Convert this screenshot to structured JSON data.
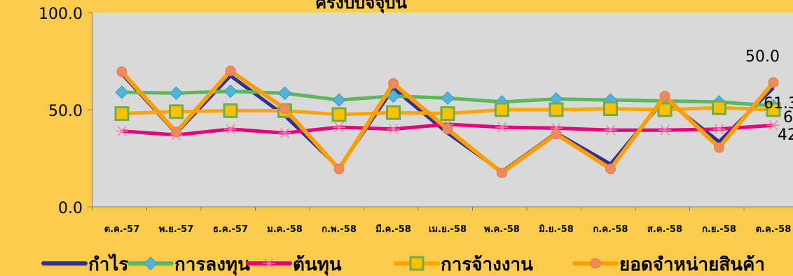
{
  "chart_data": {
    "type": "line",
    "title": "ครึ่งปีบัจจุบัน",
    "ylim": [
      0,
      100
    ],
    "y_ticks": [
      "0.0",
      "50.0",
      "100.0"
    ],
    "grid": false,
    "legend_position": "bottom",
    "categories": [
      "ต.ค.-57",
      "พ.ย.-57",
      "ธ.ค.-57",
      "ม.ค.-58",
      "ก.พ.-58",
      "มี.ค.-58",
      "เม.ย.-58",
      "พ.ค.-58",
      "มิ.ย.-58",
      "ก.ค.-58",
      "ส.ค.-58",
      "ก.ย.-58",
      "ต.ค.-58"
    ],
    "series": [
      {
        "name": "กำไร",
        "color": "#2E3192",
        "marker": "none",
        "values": [
          68.5,
          38.0,
          67.5,
          47.0,
          20.0,
          61.0,
          38.0,
          18.0,
          38.0,
          22.0,
          55.5,
          33.5,
          61.3
        ]
      },
      {
        "name": "การลงทุน",
        "color": "#5CB85C",
        "marker": "diamond",
        "values": [
          59.0,
          58.5,
          59.5,
          58.5,
          55.0,
          57.0,
          56.0,
          54.0,
          55.5,
          55.0,
          54.5,
          54.0,
          52.0
        ]
      },
      {
        "name": "ต้นทุน",
        "color": "#E6007E",
        "marker": "asterisk",
        "values": [
          39.0,
          37.0,
          40.0,
          38.0,
          41.0,
          40.0,
          42.5,
          41.0,
          40.5,
          39.5,
          39.5,
          40.0,
          42.0
        ]
      },
      {
        "name": "การจ้างงาน",
        "color": "#FFA500",
        "marker": "square",
        "values": [
          48.0,
          49.0,
          49.5,
          49.5,
          47.5,
          48.5,
          48.0,
          50.0,
          50.0,
          50.5,
          50.0,
          51.0,
          50.0
        ]
      },
      {
        "name": "ยอดจำหน่ายสินค้า",
        "color": "#FF9E00",
        "marker": "circle",
        "values": [
          69.5,
          38.5,
          70.0,
          50.5,
          19.5,
          63.5,
          40.0,
          17.5,
          37.5,
          19.5,
          57.0,
          30.5,
          64.0
        ]
      }
    ],
    "annotations": [
      "50.0",
      "61.3",
      "6",
      "42"
    ]
  }
}
